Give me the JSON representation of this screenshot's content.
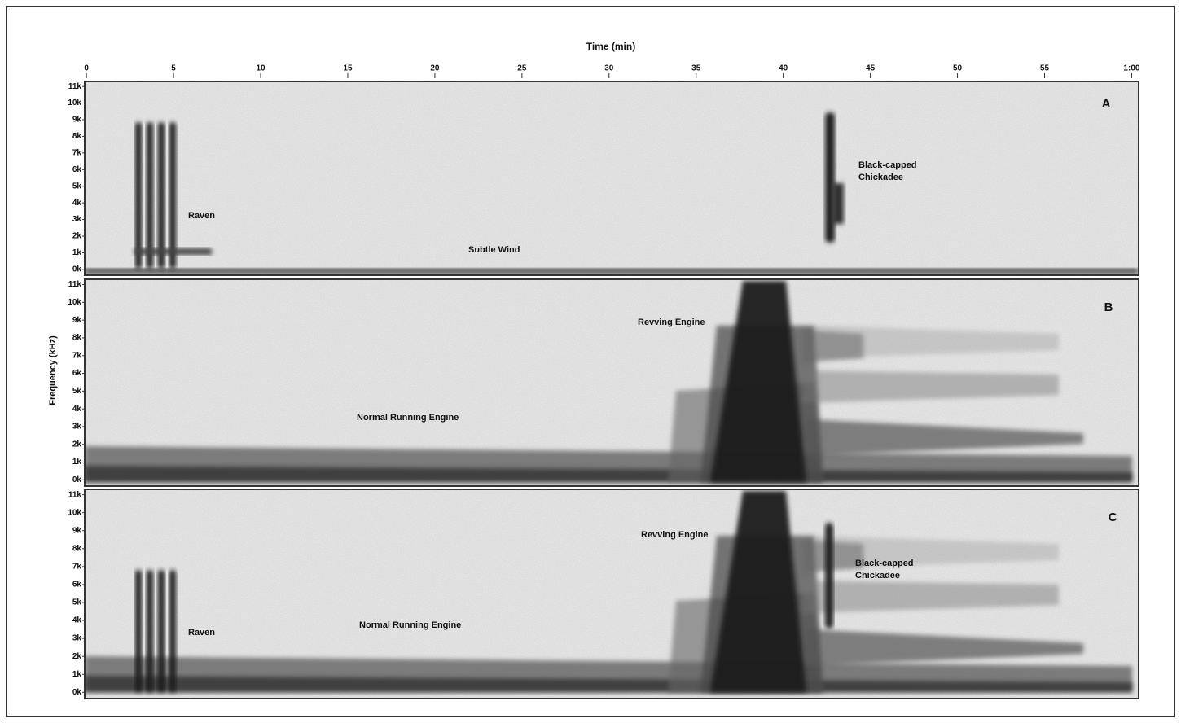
{
  "chart_data": {
    "type": "spectrogram",
    "x_label": "Time (min)",
    "y_label": "Frequency (kHz)",
    "xlim": [
      -0.1,
      60.4
    ],
    "xticks": [
      0,
      5,
      10,
      15,
      20,
      25,
      30,
      35,
      40,
      45,
      50,
      55,
      {
        "value": 60,
        "label": "1:00"
      }
    ],
    "panels": [
      {
        "label": "A",
        "ylim": [
          -0.35,
          11.3
        ],
        "yticks": [
          {
            "value": 0,
            "label": "0k"
          },
          {
            "value": 1,
            "label": "1k"
          },
          {
            "value": 2,
            "label": "2k"
          },
          {
            "value": 3,
            "label": "3k"
          },
          {
            "value": 4,
            "label": "4k"
          },
          {
            "value": 5,
            "label": "5k"
          },
          {
            "value": 6,
            "label": "6k"
          },
          {
            "value": 7,
            "label": "7k"
          },
          {
            "value": 8,
            "label": "8k"
          },
          {
            "value": 9,
            "label": "9k"
          },
          {
            "value": 10,
            "label": "10k"
          },
          {
            "value": 11,
            "label": "11k"
          }
        ],
        "annotations": [
          [
            "Raven"
          ],
          [
            "Subtle Wind"
          ],
          [
            "Black-capped",
            "Chickadee"
          ]
        ]
      },
      {
        "label": "B",
        "ylim": [
          -0.35,
          11.3
        ],
        "yticks": [
          {
            "value": 0,
            "label": "0k"
          },
          {
            "value": 1,
            "label": "1k"
          },
          {
            "value": 2,
            "label": "2k"
          },
          {
            "value": 3,
            "label": "3k"
          },
          {
            "value": 4,
            "label": "4k"
          },
          {
            "value": 5,
            "label": "5k"
          },
          {
            "value": 6,
            "label": "6k"
          },
          {
            "value": 7,
            "label": "7k"
          },
          {
            "value": 8,
            "label": "8k"
          },
          {
            "value": 9,
            "label": "9k"
          },
          {
            "value": 10,
            "label": "10k"
          },
          {
            "value": 11,
            "label": "11k"
          }
        ],
        "annotations": [
          [
            "Revving Engine"
          ],
          [
            "Normal Running Engine"
          ]
        ]
      },
      {
        "label": "C",
        "ylim": [
          -0.35,
          11.3
        ],
        "yticks": [
          {
            "value": 0,
            "label": "0k"
          },
          {
            "value": 1,
            "label": "1k"
          },
          {
            "value": 2,
            "label": "2k"
          },
          {
            "value": 3,
            "label": "3k"
          },
          {
            "value": 4,
            "label": "4k"
          },
          {
            "value": 5,
            "label": "5k"
          },
          {
            "value": 6,
            "label": "6k"
          },
          {
            "value": 7,
            "label": "7k"
          },
          {
            "value": 8,
            "label": "8k"
          },
          {
            "value": 9,
            "label": "9k"
          },
          {
            "value": 10,
            "label": "10k"
          },
          {
            "value": 11,
            "label": "11k"
          }
        ],
        "annotations": [
          [
            "Revving Engine"
          ],
          [
            "Black-capped",
            "Chickadee"
          ],
          [
            "Raven"
          ],
          [
            "Normal Running Engine"
          ]
        ]
      }
    ]
  }
}
